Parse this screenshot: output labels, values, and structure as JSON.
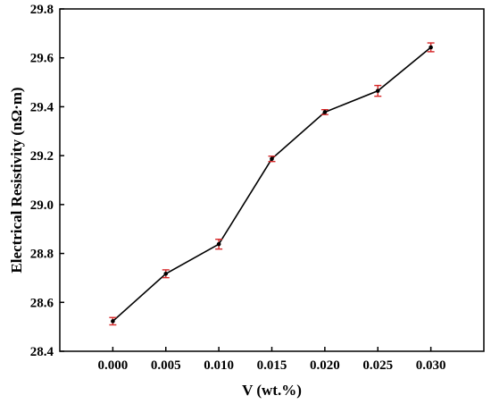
{
  "chart_data": {
    "type": "line",
    "title": "",
    "xlabel": "V (wt.%)",
    "ylabel": "Electrical Resistivity (nΩ·m)",
    "x": [
      0.0,
      0.005,
      0.01,
      0.015,
      0.02,
      0.025,
      0.03
    ],
    "x_tick_labels": [
      "0.000",
      "0.005",
      "0.010",
      "0.015",
      "0.020",
      "0.025",
      "0.030"
    ],
    "y_ticks": [
      28.4,
      28.6,
      28.8,
      29.0,
      29.2,
      29.4,
      29.6,
      29.8
    ],
    "y_tick_labels": [
      "28.4",
      "28.6",
      "28.8",
      "29.0",
      "29.2",
      "29.4",
      "29.6",
      "29.8"
    ],
    "xlim": [
      -0.005,
      0.035
    ],
    "ylim": [
      28.4,
      29.8
    ],
    "series": [
      {
        "values": [
          28.523,
          28.717,
          28.838,
          29.187,
          29.378,
          29.465,
          29.643
        ],
        "errors": [
          0.015,
          0.016,
          0.02,
          0.011,
          0.01,
          0.022,
          0.018
        ]
      }
    ],
    "grid": false,
    "line_color": "#000000",
    "marker_color": "#000000",
    "error_bar_color": "#d62728"
  }
}
